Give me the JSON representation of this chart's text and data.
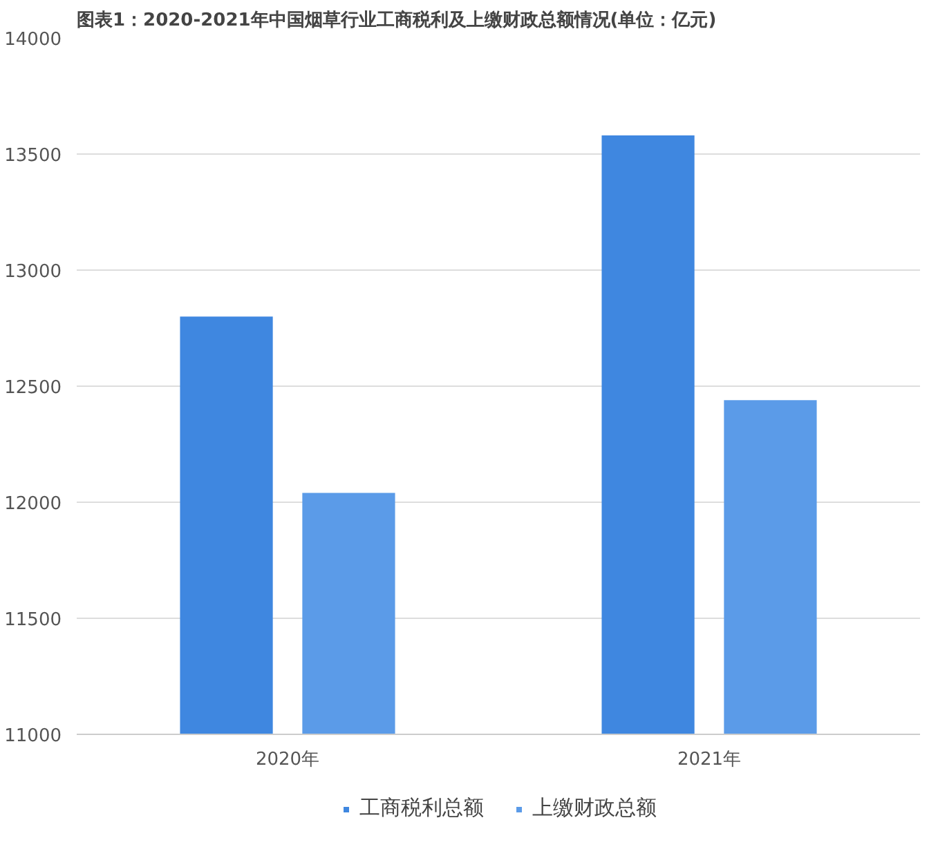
{
  "chart_data": {
    "type": "bar",
    "title": "图表1：2020-2021年中国烟草行业工商税利及上缴财政总额情况(单位：亿元)",
    "categories": [
      "2020年",
      "2021年"
    ],
    "series": [
      {
        "name": "工商税利总额",
        "color": "#3f87e0",
        "values": [
          12800,
          13580
        ]
      },
      {
        "name": "上缴财政总额",
        "color": "#5b9be8",
        "values": [
          12040,
          12440
        ]
      }
    ],
    "ylim": [
      11000,
      14000
    ],
    "yticks": [
      11000,
      11500,
      12000,
      12500,
      13000,
      13500,
      14000
    ],
    "grid": "y",
    "legend": "bottom"
  }
}
